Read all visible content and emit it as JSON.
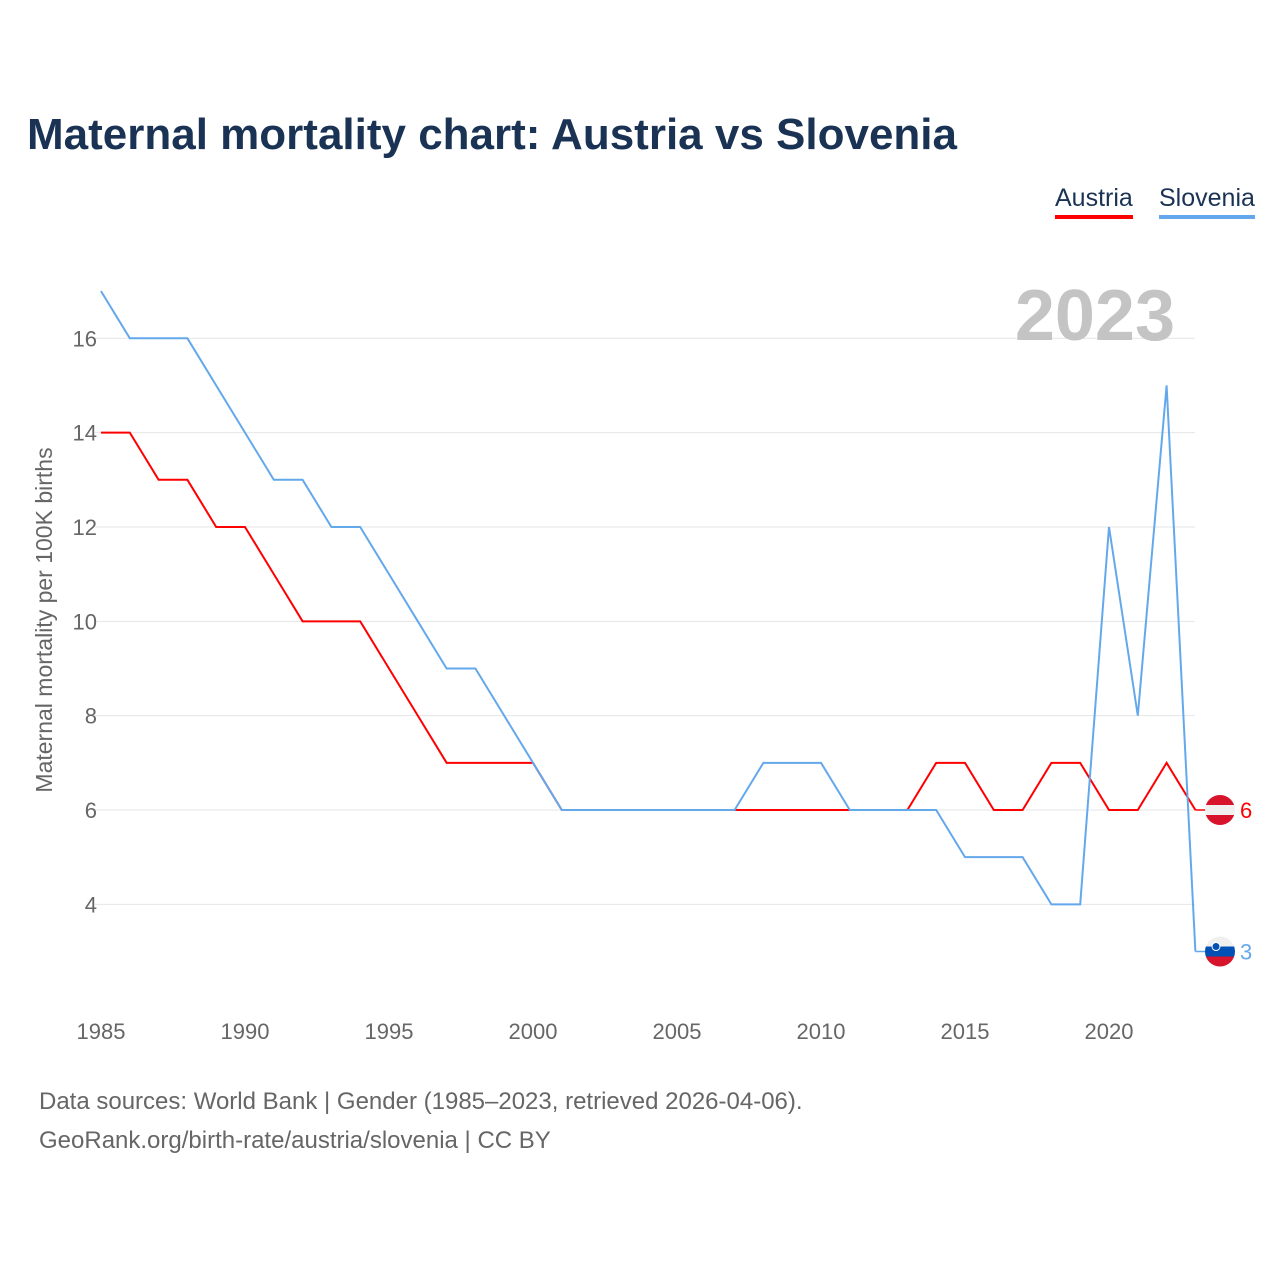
{
  "chart_data": {
    "type": "line",
    "title": "Maternal mortality chart: Austria vs Slovenia",
    "ylabel": "Maternal mortality per 100K births",
    "xlabel": "",
    "year_watermark": "2023",
    "x": [
      1985,
      1986,
      1987,
      1988,
      1989,
      1990,
      1991,
      1992,
      1993,
      1994,
      1995,
      1996,
      1997,
      1998,
      1999,
      2000,
      2001,
      2002,
      2003,
      2004,
      2005,
      2006,
      2007,
      2008,
      2009,
      2010,
      2011,
      2012,
      2013,
      2014,
      2015,
      2016,
      2017,
      2018,
      2019,
      2020,
      2021,
      2022,
      2023
    ],
    "series": [
      {
        "name": "Austria",
        "color": "#ff0000",
        "end_label": "6",
        "values": [
          14,
          14,
          13,
          13,
          12,
          12,
          11,
          10,
          10,
          10,
          9,
          8,
          7,
          7,
          7,
          7,
          6,
          6,
          6,
          6,
          6,
          6,
          6,
          6,
          6,
          6,
          6,
          6,
          6,
          7,
          7,
          6,
          6,
          7,
          7,
          6,
          6,
          7,
          6
        ]
      },
      {
        "name": "Slovenia",
        "color": "#64a8ec",
        "end_label": "3",
        "values": [
          17,
          16,
          16,
          16,
          15,
          14,
          13,
          13,
          12,
          12,
          11,
          10,
          9,
          9,
          8,
          7,
          6,
          6,
          6,
          6,
          6,
          6,
          6,
          7,
          7,
          7,
          6,
          6,
          6,
          6,
          5,
          5,
          5,
          4,
          4,
          12,
          8,
          15,
          3
        ]
      }
    ],
    "xticks": [
      "1985",
      "1990",
      "1995",
      "2000",
      "2005",
      "2010",
      "2015",
      "2020"
    ],
    "yticks": [
      "4",
      "6",
      "8",
      "10",
      "12",
      "14",
      "16"
    ],
    "xlim": [
      1985,
      2023
    ],
    "ylim": [
      2,
      17
    ],
    "grid": true,
    "legend_position": "top-right"
  },
  "footer": {
    "line1": "Data sources: World Bank | Gender (1985–2023, retrieved 2026-04-06).",
    "line2": "GeoRank.org/birth-rate/austria/slovenia | CC BY"
  }
}
